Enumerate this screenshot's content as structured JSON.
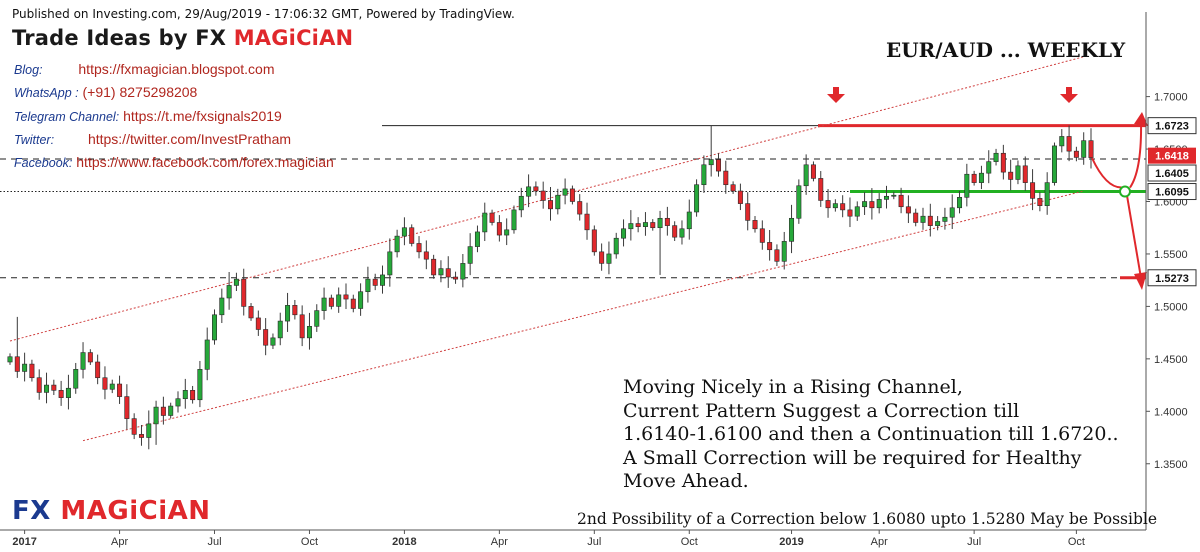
{
  "header": {
    "published": "Published on Investing.com, 29/Aug/2019 - 17:06:32 GMT, Powered by TradingView."
  },
  "brand": {
    "title_prefix": "Trade Ideas by FX ",
    "title_highlight": "MAGiCiAN",
    "logo_prefix": "FX ",
    "logo_highlight": "MAGiCiAN"
  },
  "contacts": [
    {
      "label": "Blog:",
      "value": "https://fxmagician.blogspot.com"
    },
    {
      "label": "WhatsApp :",
      "value": "(+91) 8275298208"
    },
    {
      "label": "Telegram Channel:",
      "value": "https://t.me/fxsignals2019"
    },
    {
      "label": "Twitter:",
      "value": "https://twitter.com/InvestPratham"
    },
    {
      "label": "Facebook:",
      "value": "https://www.facebook.com/forex.magician"
    }
  ],
  "analysis": {
    "lines": [
      "Moving Nicely in a Rising Channel,",
      "Current Pattern Suggest a Correction till",
      "1.6140-1.6100 and then a Continuation till 1.6720..",
      "A Small Correction will be required for Healthy",
      "Move Ahead."
    ],
    "note": "2nd Possibility of a Correction below 1.6080 upto 1.5280 May be Possible"
  },
  "colors": {
    "up": "#26a83a",
    "down": "#e0282c",
    "level_red": "#e0282c",
    "level_green": "#22b022",
    "channel": "#d04040"
  },
  "chart_data": {
    "type": "candlestick",
    "title": "EUR/AUD ... WEEKLY",
    "xlabel": "",
    "ylabel": "",
    "ylim": [
      1.35,
      1.72
    ],
    "y_ticks": [
      "1.7000",
      "1.6500",
      "1.6000",
      "1.5500",
      "1.5000",
      "1.4500",
      "1.4000",
      "1.3500"
    ],
    "x_ticks": [
      "2017",
      "Apr",
      "Jul",
      "Oct",
      "2018",
      "Apr",
      "Jul",
      "Oct",
      "2019",
      "Apr",
      "Jul",
      "Oct"
    ],
    "price_labels": [
      {
        "value": 1.6723,
        "label": "1.6723",
        "style": "outline"
      },
      {
        "value": 1.6418,
        "label": "1.6418",
        "style": "current"
      },
      {
        "value": 1.6405,
        "label": "1.6405",
        "style": "outline"
      },
      {
        "value": 1.6095,
        "label": "1.6095",
        "style": "outline"
      },
      {
        "value": 1.5273,
        "label": "1.5273",
        "style": "outline"
      }
    ],
    "levels": [
      {
        "value": 1.6723,
        "kind": "resistance",
        "color": "red"
      },
      {
        "value": 1.6405,
        "kind": "dashed",
        "color": "black"
      },
      {
        "value": 1.6095,
        "kind": "support",
        "color": "green"
      },
      {
        "value": 1.5273,
        "kind": "target",
        "color": "red"
      }
    ],
    "channel": {
      "upper": [
        {
          "date": "2016-12-19",
          "price": 1.467
        },
        {
          "date": "2019-10-14",
          "price": 1.738
        }
      ],
      "lower": [
        {
          "date": "2017-02-27",
          "price": 1.372
        },
        {
          "date": "2019-10-14",
          "price": 1.61
        }
      ]
    },
    "closes": [
      1.452,
      1.438,
      1.445,
      1.432,
      1.418,
      1.425,
      1.42,
      1.413,
      1.422,
      1.44,
      1.456,
      1.447,
      1.432,
      1.421,
      1.426,
      1.414,
      1.393,
      1.378,
      1.375,
      1.388,
      1.404,
      1.396,
      1.405,
      1.412,
      1.42,
      1.411,
      1.44,
      1.468,
      1.492,
      1.508,
      1.52,
      1.526,
      1.5,
      1.489,
      1.478,
      1.463,
      1.47,
      1.486,
      1.501,
      1.492,
      1.47,
      1.481,
      1.496,
      1.508,
      1.5,
      1.511,
      1.507,
      1.498,
      1.514,
      1.526,
      1.52,
      1.53,
      1.552,
      1.567,
      1.575,
      1.56,
      1.552,
      1.545,
      1.53,
      1.536,
      1.528,
      1.526,
      1.541,
      1.557,
      1.571,
      1.589,
      1.58,
      1.568,
      1.573,
      1.592,
      1.605,
      1.614,
      1.61,
      1.601,
      1.593,
      1.606,
      1.612,
      1.6,
      1.588,
      1.573,
      1.552,
      1.541,
      1.55,
      1.565,
      1.574,
      1.579,
      1.576,
      1.58,
      1.575,
      1.584,
      1.577,
      1.566,
      1.574,
      1.59,
      1.616,
      1.635,
      1.64,
      1.629,
      1.616,
      1.61,
      1.598,
      1.582,
      1.574,
      1.561,
      1.554,
      1.543,
      1.562,
      1.584,
      1.615,
      1.635,
      1.622,
      1.601,
      1.594,
      1.598,
      1.592,
      1.586,
      1.595,
      1.6,
      1.594,
      1.602,
      1.605,
      1.606,
      1.595,
      1.589,
      1.58,
      1.586,
      1.577,
      1.581,
      1.585,
      1.594,
      1.604,
      1.626,
      1.618,
      1.627,
      1.638,
      1.646,
      1.628,
      1.621,
      1.634,
      1.618,
      1.603,
      1.596,
      1.618,
      1.653,
      1.662,
      1.648,
      1.642,
      1.658,
      1.6418
    ]
  }
}
